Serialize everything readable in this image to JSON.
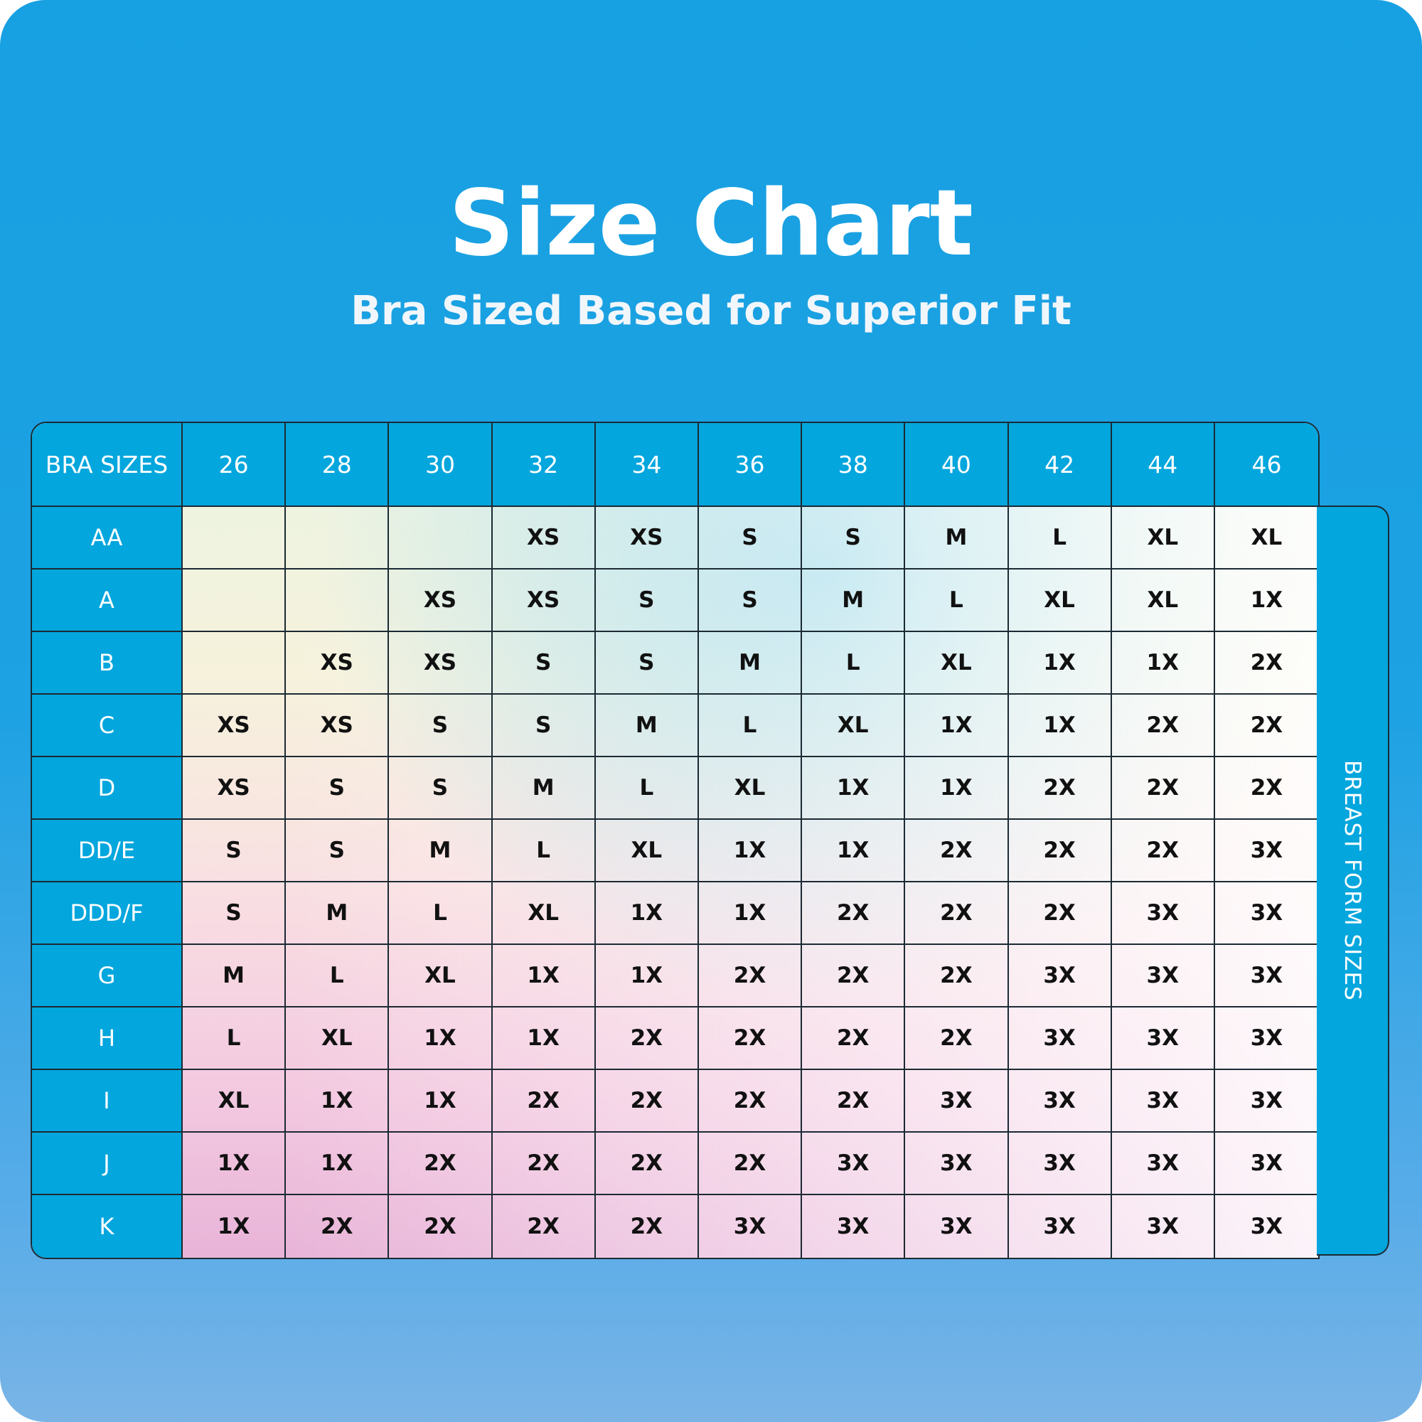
{
  "header": {
    "title": "Size Chart",
    "subtitle": "Bra Sized Based for Superior Fit"
  },
  "table": {
    "corner": "BRA SIZES",
    "columns": [
      "26",
      "28",
      "30",
      "32",
      "34",
      "36",
      "38",
      "40",
      "42",
      "44",
      "46"
    ],
    "rows": [
      {
        "label": "AA",
        "cells": [
          null,
          null,
          null,
          "XS",
          "XS",
          "S",
          "S",
          "M",
          "L",
          "XL",
          "XL"
        ]
      },
      {
        "label": "A",
        "cells": [
          null,
          null,
          "XS",
          "XS",
          "S",
          "S",
          "M",
          "L",
          "XL",
          "XL",
          "1X"
        ]
      },
      {
        "label": "B",
        "cells": [
          null,
          "XS",
          "XS",
          "S",
          "S",
          "M",
          "L",
          "XL",
          "1X",
          "1X",
          "2X"
        ]
      },
      {
        "label": "C",
        "cells": [
          "XS",
          "XS",
          "S",
          "S",
          "M",
          "L",
          "XL",
          "1X",
          "1X",
          "2X",
          "2X"
        ]
      },
      {
        "label": "D",
        "cells": [
          "XS",
          "S",
          "S",
          "M",
          "L",
          "XL",
          "1X",
          "1X",
          "2X",
          "2X",
          "2X"
        ]
      },
      {
        "label": "DD/E",
        "cells": [
          "S",
          "S",
          "M",
          "L",
          "XL",
          "1X",
          "1X",
          "2X",
          "2X",
          "2X",
          "3X"
        ]
      },
      {
        "label": "DDD/F",
        "cells": [
          "S",
          "M",
          "L",
          "XL",
          "1X",
          "1X",
          "2X",
          "2X",
          "2X",
          "3X",
          "3X"
        ]
      },
      {
        "label": "G",
        "cells": [
          "M",
          "L",
          "XL",
          "1X",
          "1X",
          "2X",
          "2X",
          "2X",
          "3X",
          "3X",
          "3X"
        ]
      },
      {
        "label": "H",
        "cells": [
          "L",
          "XL",
          "1X",
          "1X",
          "2X",
          "2X",
          "2X",
          "2X",
          "3X",
          "3X",
          "3X"
        ]
      },
      {
        "label": "I",
        "cells": [
          "XL",
          "1X",
          "1X",
          "2X",
          "2X",
          "2X",
          "2X",
          "3X",
          "3X",
          "3X",
          "3X"
        ]
      },
      {
        "label": "J",
        "cells": [
          "1X",
          "1X",
          "2X",
          "2X",
          "2X",
          "2X",
          "3X",
          "3X",
          "3X",
          "3X",
          "3X"
        ]
      },
      {
        "label": "K",
        "cells": [
          "1X",
          "2X",
          "2X",
          "2X",
          "2X",
          "3X",
          "3X",
          "3X",
          "3X",
          "3X",
          "3X"
        ]
      }
    ],
    "side_label": "BREAST FORM SIZES"
  }
}
